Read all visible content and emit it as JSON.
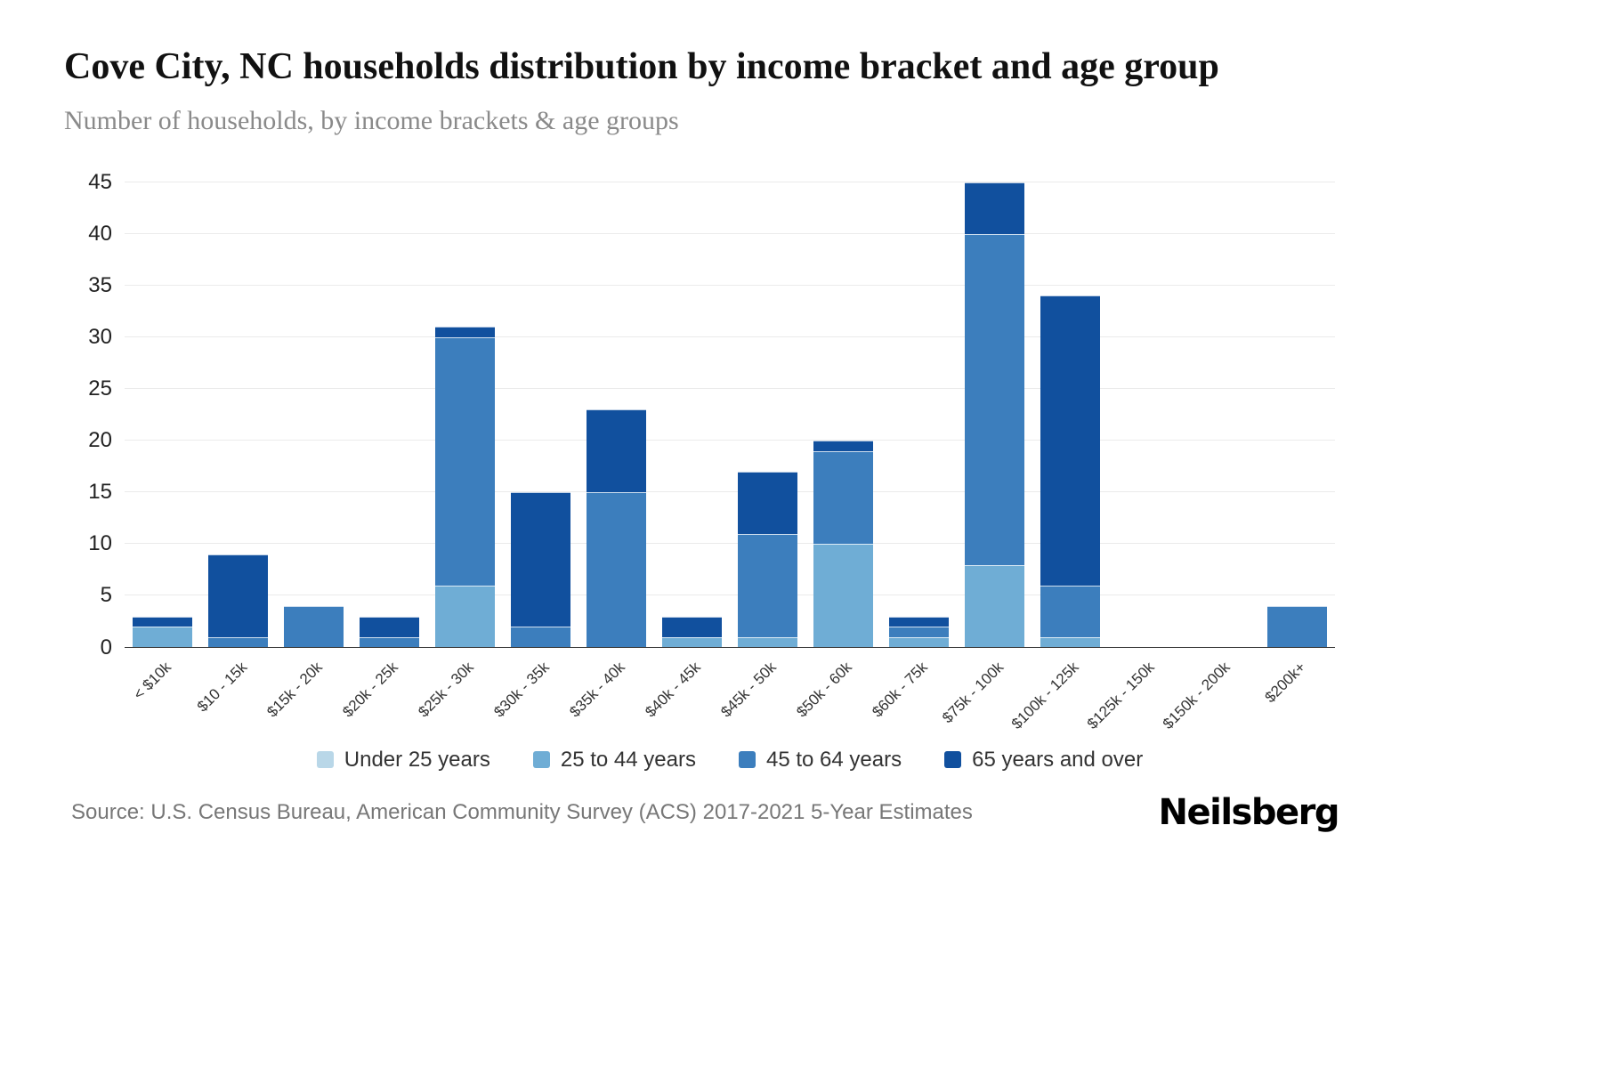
{
  "header": {
    "title": "Cove City, NC households distribution by income bracket and age group",
    "subtitle": "Number of households, by income brackets & age groups"
  },
  "chart_data": {
    "type": "bar",
    "stacked": true,
    "categories": [
      "< $10k",
      "$10 - 15k",
      "$15k - 20k",
      "$20k - 25k",
      "$25k - 30k",
      "$30k - 35k",
      "$35k - 40k",
      "$40k - 45k",
      "$45k - 50k",
      "$50k - 60k",
      "$60k - 75k",
      "$75k - 100k",
      "$100k - 125k",
      "$125k - 150k",
      "$150k - 200k",
      "$200k+"
    ],
    "series": [
      {
        "name": "Under 25 years",
        "color": "#b9d7e8",
        "values": [
          0,
          0,
          0,
          0,
          0,
          0,
          0,
          0,
          0,
          0,
          0,
          0,
          0,
          0,
          0,
          0
        ]
      },
      {
        "name": "25 to 44 years",
        "color": "#6fadd5",
        "values": [
          2,
          0,
          0,
          0,
          6,
          0,
          0,
          1,
          1,
          10,
          1,
          8,
          1,
          0,
          0,
          0
        ]
      },
      {
        "name": "45 to 64 years",
        "color": "#3c7ebd",
        "values": [
          0,
          1,
          4,
          1,
          24,
          2,
          15,
          0,
          10,
          9,
          1,
          32,
          5,
          0,
          0,
          4
        ]
      },
      {
        "name": "65 years and over",
        "color": "#11509e",
        "values": [
          1,
          8,
          0,
          2,
          1,
          13,
          8,
          2,
          6,
          1,
          1,
          5,
          28,
          0,
          0,
          0
        ]
      }
    ],
    "totals": [
      3,
      9,
      4,
      3,
      31,
      15,
      23,
      3,
      17,
      20,
      3,
      45,
      34,
      0,
      0,
      4
    ],
    "ylim": [
      0,
      45
    ],
    "yticks": [
      0,
      5,
      10,
      15,
      20,
      25,
      30,
      35,
      40,
      45
    ],
    "grid": true,
    "legend_position": "bottom"
  },
  "footer": {
    "source": "Source: U.S. Census Bureau, American Community Survey (ACS) 2017-2021 5-Year Estimates",
    "brand": "Neilsberg"
  }
}
